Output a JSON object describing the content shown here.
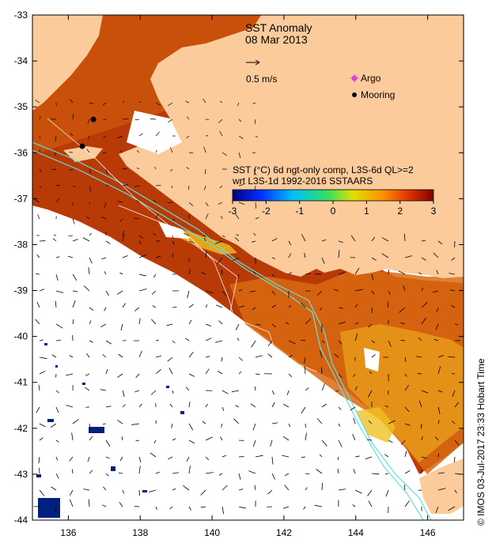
{
  "title": "SST Anomaly",
  "date": "08 Mar 2013",
  "vector_key_label": "0.5 m/s",
  "legend": {
    "argo": {
      "label": "Argo",
      "color": "#e040e0"
    },
    "mooring": {
      "label": "Mooring",
      "color": "#000000"
    }
  },
  "colorbar": {
    "title_line1": "SST (°C) 6d ngt-only comp, L3S-6d QL>=2",
    "title_line2": "wrt L3S-1d 1992-2016 SSTAARS",
    "ticks": [
      "-3",
      "-2",
      "-1",
      "0",
      "1",
      "2",
      "3"
    ],
    "colors": [
      "#00007f",
      "#0030ff",
      "#00c0ff",
      "#30e060",
      "#e0e000",
      "#ff9000",
      "#e03000",
      "#7f0000"
    ]
  },
  "axes": {
    "x_ticks": [
      "136",
      "138",
      "140",
      "142",
      "144",
      "146"
    ],
    "y_ticks": [
      "-33",
      "-34",
      "-35",
      "-36",
      "-37",
      "-38",
      "-39",
      "-40",
      "-41",
      "-42",
      "-43",
      "-44"
    ]
  },
  "credit": "© IMOS 03-Jul-2017 23:33 Hobart Time",
  "colors": {
    "land": "#fccb9c",
    "ocean_no_data": "#ffffff",
    "anomaly_high": "#b83a06",
    "anomaly_mid": "#d96a10",
    "anomaly_low": "#e89a1a",
    "contour_200m": "#66e0e0"
  }
}
